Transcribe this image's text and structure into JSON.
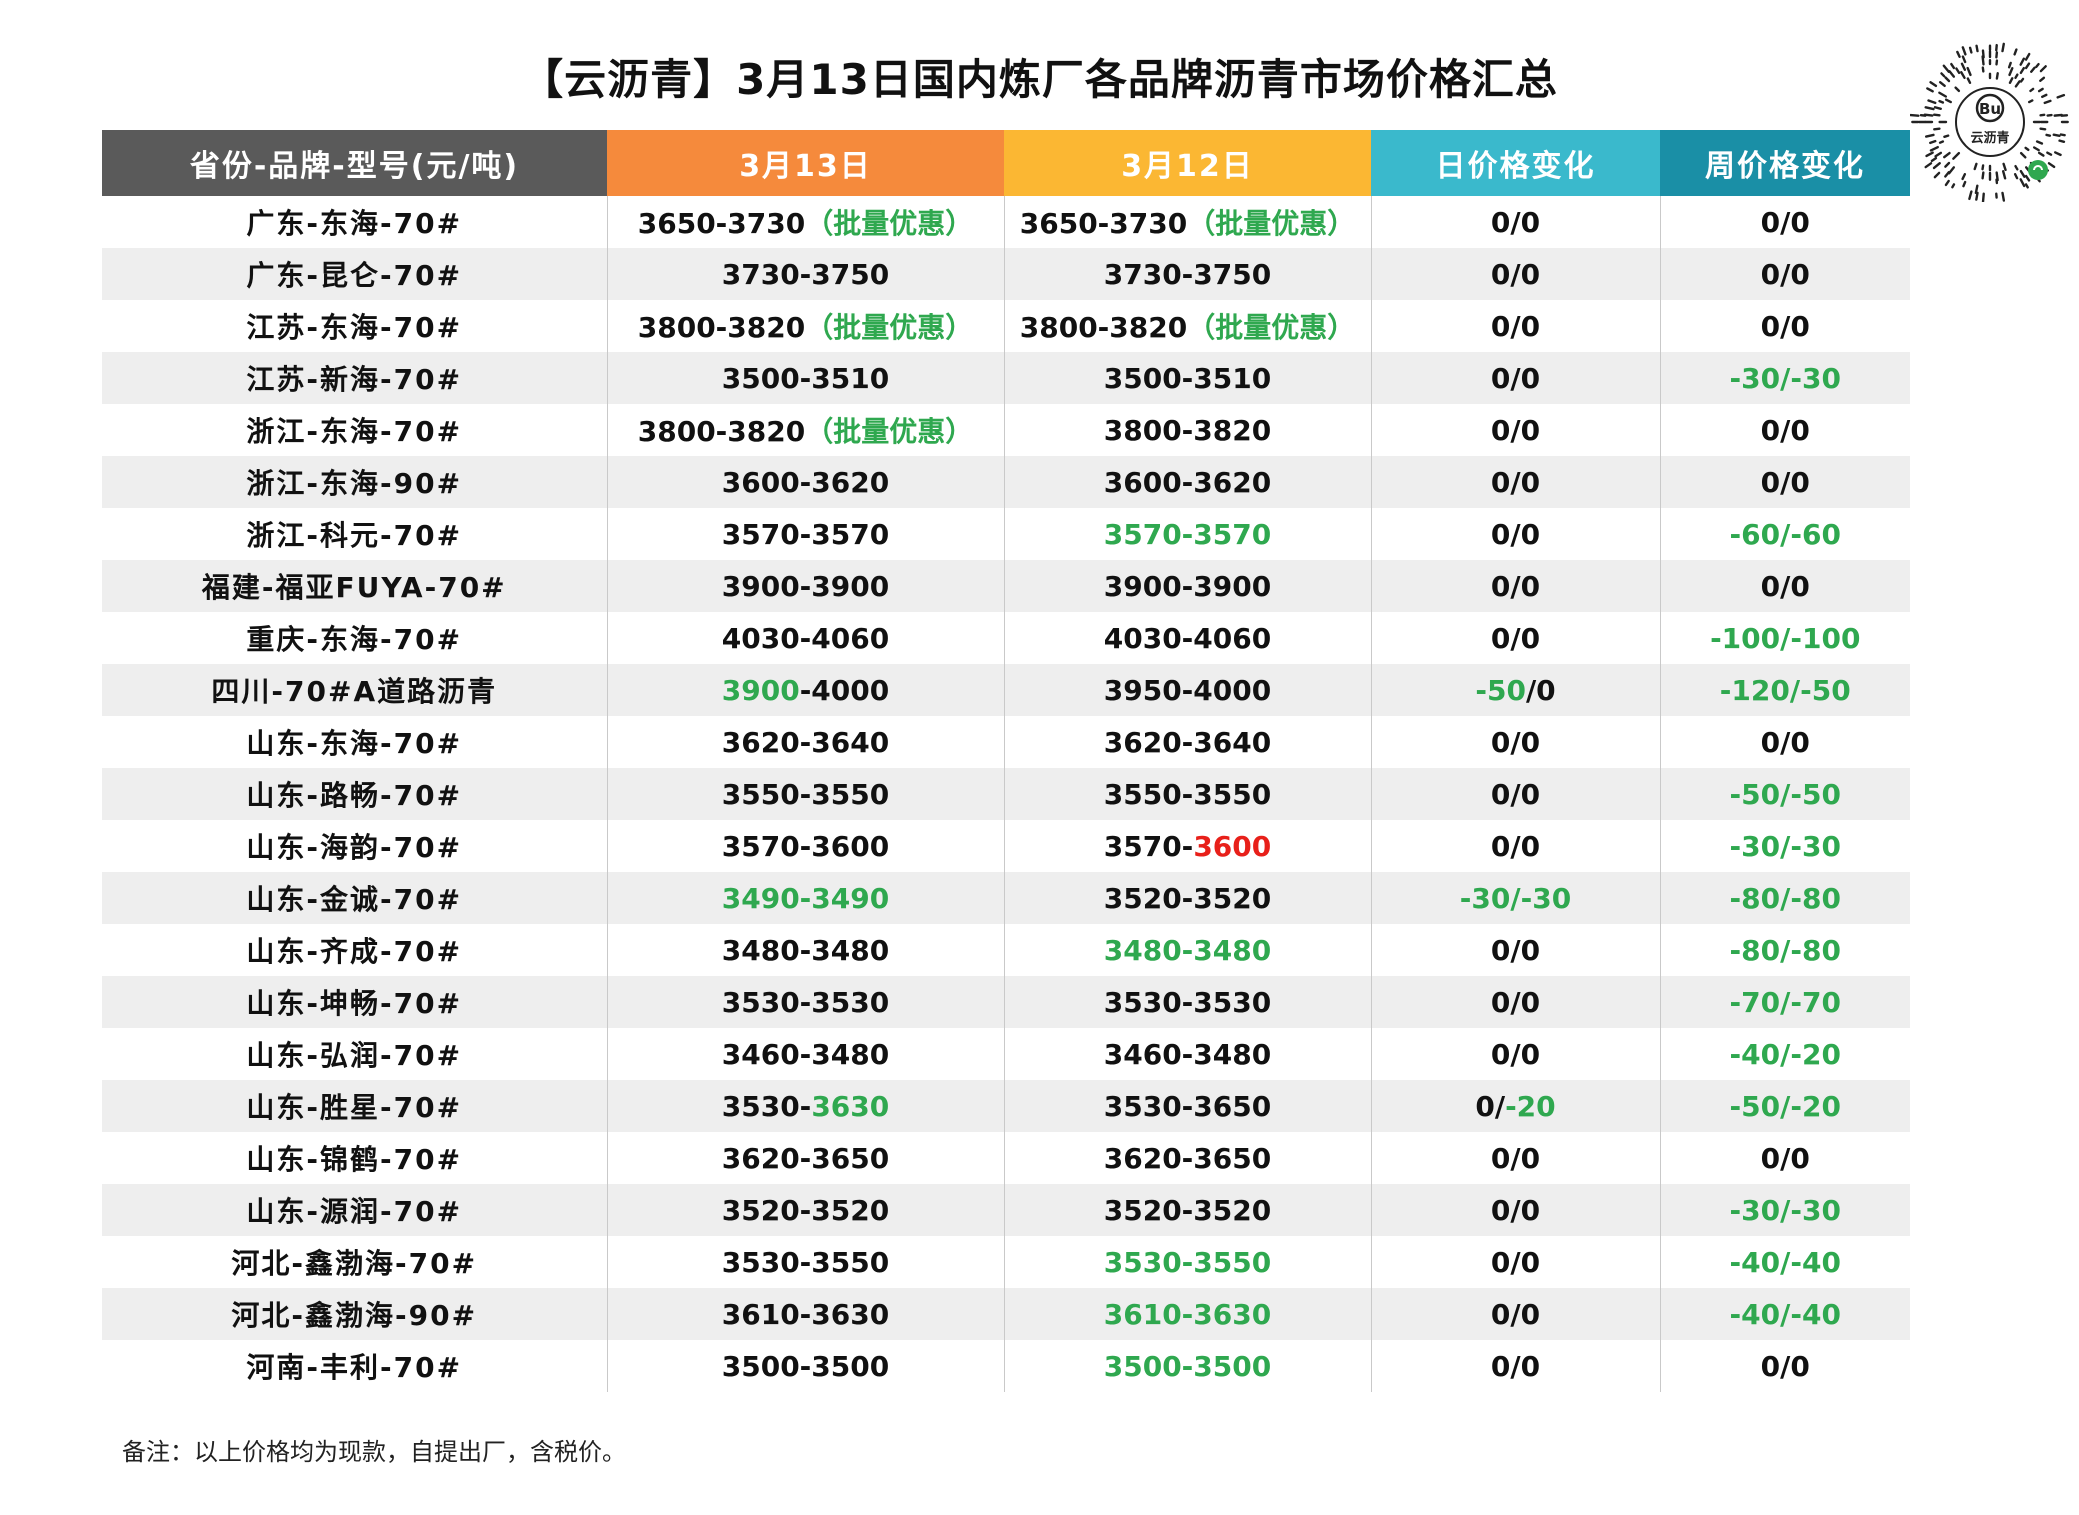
{
  "title": "【云沥青】3月13日国内炼厂各品牌沥青市场价格汇总",
  "logo_text": "云沥青",
  "colors": {
    "green": "#2fa84f",
    "red": "#e8201a",
    "dark": "#111111",
    "header": [
      "#5a5a5a",
      "#f58a3c",
      "#fbb733",
      "#3ab9cc",
      "#1a8fa6"
    ]
  },
  "chart_data": {
    "type": "table",
    "columns": [
      "省份-品牌-型号(元/吨)",
      "3月13日",
      "3月12日",
      "日价格变化",
      "周价格变化"
    ],
    "rows": [
      {
        "label": "广东-东海-70#",
        "cells": [
          [
            [
              "3650-3730",
              "d"
            ],
            [
              "（批量优惠）",
              "g"
            ]
          ],
          [
            [
              "3650-3730",
              "d"
            ],
            [
              "（批量优惠）",
              "g"
            ]
          ],
          [
            [
              "0/0",
              "d"
            ]
          ],
          [
            [
              "0/0",
              "d"
            ]
          ]
        ]
      },
      {
        "label": "广东-昆仑-70#",
        "cells": [
          [
            [
              "3730-3750",
              "d"
            ]
          ],
          [
            [
              "3730-3750",
              "d"
            ]
          ],
          [
            [
              "0/0",
              "d"
            ]
          ],
          [
            [
              "0/0",
              "d"
            ]
          ]
        ]
      },
      {
        "label": "江苏-东海-70#",
        "cells": [
          [
            [
              "3800-3820",
              "d"
            ],
            [
              "（批量优惠）",
              "g"
            ]
          ],
          [
            [
              "3800-3820",
              "d"
            ],
            [
              "（批量优惠）",
              "g"
            ]
          ],
          [
            [
              "0/0",
              "d"
            ]
          ],
          [
            [
              "0/0",
              "d"
            ]
          ]
        ]
      },
      {
        "label": "江苏-新海-70#",
        "cells": [
          [
            [
              "3500-3510",
              "d"
            ]
          ],
          [
            [
              "3500-3510",
              "d"
            ]
          ],
          [
            [
              "0/0",
              "d"
            ]
          ],
          [
            [
              "-30/-30",
              "g"
            ]
          ]
        ]
      },
      {
        "label": "浙江-东海-70#",
        "cells": [
          [
            [
              "3800-3820",
              "d"
            ],
            [
              "（批量优惠）",
              "g"
            ]
          ],
          [
            [
              "3800-3820",
              "d"
            ]
          ],
          [
            [
              "0/0",
              "d"
            ]
          ],
          [
            [
              "0/0",
              "d"
            ]
          ]
        ]
      },
      {
        "label": "浙江-东海-90#",
        "cells": [
          [
            [
              "3600-3620",
              "d"
            ]
          ],
          [
            [
              "3600-3620",
              "d"
            ]
          ],
          [
            [
              "0/0",
              "d"
            ]
          ],
          [
            [
              "0/0",
              "d"
            ]
          ]
        ]
      },
      {
        "label": "浙江-科元-70#",
        "cells": [
          [
            [
              "3570-3570",
              "d"
            ]
          ],
          [
            [
              "3570-3570",
              "g"
            ]
          ],
          [
            [
              "0/0",
              "d"
            ]
          ],
          [
            [
              "-60/-60",
              "g"
            ]
          ]
        ]
      },
      {
        "label": "福建-福亚FUYA-70#",
        "cells": [
          [
            [
              "3900-3900",
              "d"
            ]
          ],
          [
            [
              "3900-3900",
              "d"
            ]
          ],
          [
            [
              "0/0",
              "d"
            ]
          ],
          [
            [
              "0/0",
              "d"
            ]
          ]
        ]
      },
      {
        "label": "重庆-东海-70#",
        "cells": [
          [
            [
              "4030-4060",
              "d"
            ]
          ],
          [
            [
              "4030-4060",
              "d"
            ]
          ],
          [
            [
              "0/0",
              "d"
            ]
          ],
          [
            [
              "-100/-100",
              "g"
            ]
          ]
        ]
      },
      {
        "label": "四川-70#A道路沥青",
        "cells": [
          [
            [
              "3900",
              "g"
            ],
            [
              "-4000",
              "d"
            ]
          ],
          [
            [
              "3950-4000",
              "d"
            ]
          ],
          [
            [
              "-50",
              "g"
            ],
            [
              "/0",
              "d"
            ]
          ],
          [
            [
              "-120/-50",
              "g"
            ]
          ]
        ]
      },
      {
        "label": "山东-东海-70#",
        "cells": [
          [
            [
              "3620-3640",
              "d"
            ]
          ],
          [
            [
              "3620-3640",
              "d"
            ]
          ],
          [
            [
              "0/0",
              "d"
            ]
          ],
          [
            [
              "0/0",
              "d"
            ]
          ]
        ]
      },
      {
        "label": "山东-路畅-70#",
        "cells": [
          [
            [
              "3550-3550",
              "d"
            ]
          ],
          [
            [
              "3550-3550",
              "d"
            ]
          ],
          [
            [
              "0/0",
              "d"
            ]
          ],
          [
            [
              "-50/-50",
              "g"
            ]
          ]
        ]
      },
      {
        "label": "山东-海韵-70#",
        "cells": [
          [
            [
              "3570-3600",
              "d"
            ]
          ],
          [
            [
              "3570-",
              "d"
            ],
            [
              "3600",
              "r"
            ]
          ],
          [
            [
              "0/0",
              "d"
            ]
          ],
          [
            [
              "-30/-30",
              "g"
            ]
          ]
        ]
      },
      {
        "label": "山东-金诚-70#",
        "cells": [
          [
            [
              "3490-3490",
              "g"
            ]
          ],
          [
            [
              "3520-3520",
              "d"
            ]
          ],
          [
            [
              "-30/-30",
              "g"
            ]
          ],
          [
            [
              "-80/-80",
              "g"
            ]
          ]
        ]
      },
      {
        "label": "山东-齐成-70#",
        "cells": [
          [
            [
              "3480-3480",
              "d"
            ]
          ],
          [
            [
              "3480-3480",
              "g"
            ]
          ],
          [
            [
              "0/0",
              "d"
            ]
          ],
          [
            [
              "-80/-80",
              "g"
            ]
          ]
        ]
      },
      {
        "label": "山东-坤畅-70#",
        "cells": [
          [
            [
              "3530-3530",
              "d"
            ]
          ],
          [
            [
              "3530-3530",
              "d"
            ]
          ],
          [
            [
              "0/0",
              "d"
            ]
          ],
          [
            [
              "-70/-70",
              "g"
            ]
          ]
        ]
      },
      {
        "label": "山东-弘润-70#",
        "cells": [
          [
            [
              "3460-3480",
              "d"
            ]
          ],
          [
            [
              "3460-3480",
              "d"
            ]
          ],
          [
            [
              "0/0",
              "d"
            ]
          ],
          [
            [
              "-40/-20",
              "g"
            ]
          ]
        ]
      },
      {
        "label": "山东-胜星-70#",
        "cells": [
          [
            [
              "3530-",
              "d"
            ],
            [
              "3630",
              "g"
            ]
          ],
          [
            [
              "3530-3650",
              "d"
            ]
          ],
          [
            [
              "0/",
              "d"
            ],
            [
              "-20",
              "g"
            ]
          ],
          [
            [
              "-50/-20",
              "g"
            ]
          ]
        ]
      },
      {
        "label": "山东-锦鹤-70#",
        "cells": [
          [
            [
              "3620-3650",
              "d"
            ]
          ],
          [
            [
              "3620-3650",
              "d"
            ]
          ],
          [
            [
              "0/0",
              "d"
            ]
          ],
          [
            [
              "0/0",
              "d"
            ]
          ]
        ]
      },
      {
        "label": "山东-源润-70#",
        "cells": [
          [
            [
              "3520-3520",
              "d"
            ]
          ],
          [
            [
              "3520-3520",
              "d"
            ]
          ],
          [
            [
              "0/0",
              "d"
            ]
          ],
          [
            [
              "-30/-30",
              "g"
            ]
          ]
        ]
      },
      {
        "label": "河北-鑫渤海-70#",
        "cells": [
          [
            [
              "3530-3550",
              "d"
            ]
          ],
          [
            [
              "3530-3550",
              "g"
            ]
          ],
          [
            [
              "0/0",
              "d"
            ]
          ],
          [
            [
              "-40/-40",
              "g"
            ]
          ]
        ]
      },
      {
        "label": "河北-鑫渤海-90#",
        "cells": [
          [
            [
              "3610-3630",
              "d"
            ]
          ],
          [
            [
              "3610-3630",
              "g"
            ]
          ],
          [
            [
              "0/0",
              "d"
            ]
          ],
          [
            [
              "-40/-40",
              "g"
            ]
          ]
        ]
      },
      {
        "label": "河南-丰利-70#",
        "cells": [
          [
            [
              "3500-3500",
              "d"
            ]
          ],
          [
            [
              "3500-3500",
              "g"
            ]
          ],
          [
            [
              "0/0",
              "d"
            ]
          ],
          [
            [
              "0/0",
              "d"
            ]
          ]
        ]
      }
    ]
  },
  "note": "备注：以上价格均为现款，自提出厂，含税价。"
}
